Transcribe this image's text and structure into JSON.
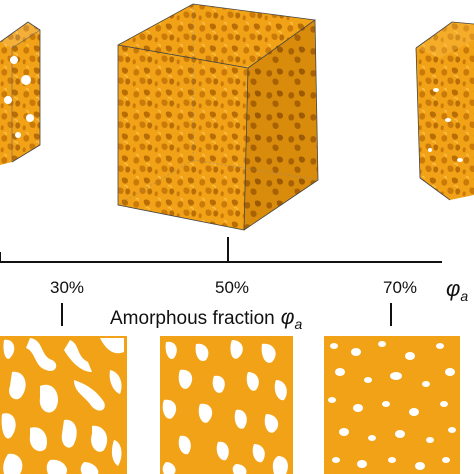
{
  "axis": {
    "title": "Amorphous fraction",
    "symbol": "φ",
    "subscript": "a",
    "ticks": [
      {
        "label": "30%",
        "value": 30
      },
      {
        "label": "50%",
        "value": 50
      },
      {
        "label": "70%",
        "value": 70
      }
    ],
    "edge_symbol": "φ",
    "edge_subscript": "a"
  },
  "colors": {
    "material": "#f2a217",
    "material_dark": "#b86e05",
    "material_light": "#fcc04a",
    "pore": "#ffffff",
    "axis": "#111111",
    "box_edge": "#444444"
  },
  "panels": {
    "cubes": [
      {
        "name": "cube-left-partial",
        "fraction": 30
      },
      {
        "name": "cube-center",
        "fraction": 50
      },
      {
        "name": "cube-right-partial",
        "fraction": 70
      }
    ],
    "slices": [
      {
        "name": "slice-30",
        "fraction": 30
      },
      {
        "name": "slice-50",
        "fraction": 50
      },
      {
        "name": "slice-70",
        "fraction": 70
      }
    ]
  }
}
